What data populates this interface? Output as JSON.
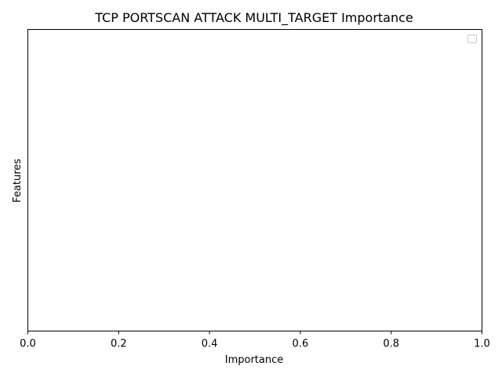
{
  "chart_data": {
    "type": "bar",
    "title": "TCP PORTSCAN ATTACK MULTI_TARGET Importance",
    "xlabel": "Importance",
    "ylabel": "Features",
    "categories": [],
    "values": [],
    "xlim": [
      0.0,
      1.0
    ],
    "xticks": [
      "0.0",
      "0.2",
      "0.4",
      "0.6",
      "0.8",
      "1.0"
    ],
    "yticks": [],
    "legend": {
      "placement": "upper-right",
      "entries": []
    },
    "grid": false
  }
}
